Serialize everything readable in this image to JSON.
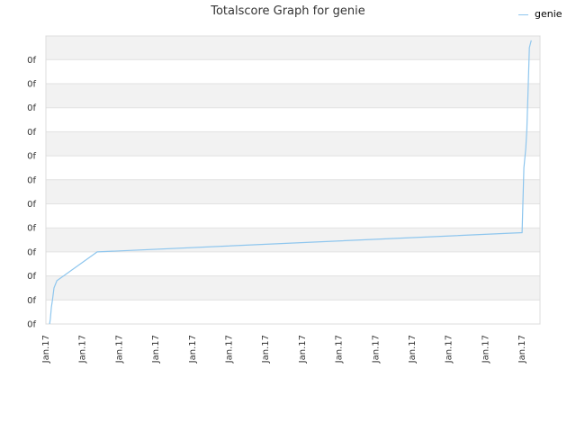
{
  "chart_data": {
    "type": "line",
    "title": "Totalscore Graph for genie",
    "legend": {
      "position": "top-right",
      "entries": [
        "genie"
      ]
    },
    "grid": true,
    "colors": {
      "line": "#8ec6ee",
      "band_dark": "#f2f2f2",
      "band_light": "#ffffff",
      "gridline": "#e1e1e1"
    },
    "y_tick_labels": [
      "0f",
      "0f",
      "0f",
      "0f",
      "0f",
      "0f",
      "0f",
      "0f",
      "0f",
      "0f",
      "0f",
      "0f"
    ],
    "x_tick_labels": [
      "Jan.17",
      "Jan.17",
      "Jan.17",
      "Jan.17",
      "Jan.17",
      "Jan.17",
      "Jan.17",
      "Jan.17",
      "Jan.17",
      "Jan.17",
      "Jan.17",
      "Jan.17",
      "Jan.17",
      "Jan.17"
    ],
    "ylim": [
      0,
      12
    ],
    "series": [
      {
        "name": "genie",
        "x": [
          0.1,
          0.12,
          0.15,
          0.18,
          0.22,
          0.3,
          1.4,
          13.0,
          13.05,
          13.1,
          13.13,
          13.17,
          13.2,
          13.25
        ],
        "y": [
          0,
          0.2,
          0.7,
          1.0,
          1.5,
          1.8,
          3.0,
          3.8,
          6.5,
          7.3,
          8.1,
          10.0,
          11.5,
          11.8
        ]
      }
    ]
  }
}
